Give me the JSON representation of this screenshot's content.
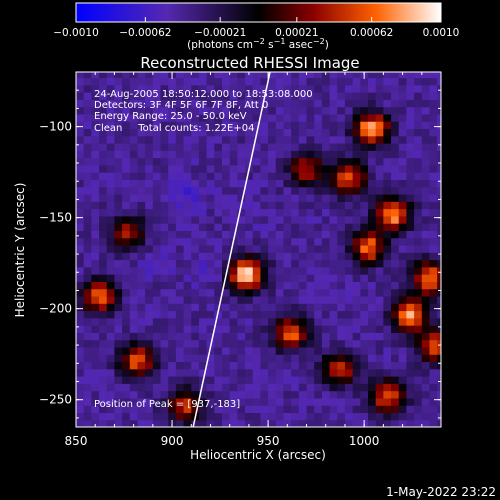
{
  "chart_data": {
    "type": "heatmap",
    "title": "Reconstructed RHESSI Image",
    "xlabel": "Heliocentric X (arcsec)",
    "ylabel": "Heliocentric Y (arcsec)",
    "xlim": [
      850,
      1040
    ],
    "ylim": [
      -265,
      -70
    ],
    "x_ticks": [
      850,
      900,
      950,
      1000
    ],
    "y_ticks": [
      -100,
      -150,
      -200,
      -250
    ],
    "grid": false,
    "colorbar": {
      "position": "top",
      "range": [
        -0.001,
        0.001
      ],
      "tick_labels": [
        "−0.0010",
        "−0.00062",
        "−0.00021",
        "0.00021",
        "0.00062",
        "0.0010"
      ],
      "tick_values": [
        -0.001,
        -0.00062,
        -0.00021,
        0.00021,
        0.00062,
        0.001
      ],
      "units": {
        "base": "(photons cm",
        "e1": "−2",
        "s": " s",
        "e2": "−1",
        "a": " asec",
        "e3": "−2",
        "end": ")"
      }
    },
    "annotations": [
      "24-Aug-2005 18:50:12.000 to 18:53:08.000",
      "Detectors: 3F 4F 5F 6F 7F 8F, Att 0",
      "Energy Range: 25.0 - 50.0 keV",
      "Clean     Total counts: 1.22E+04"
    ],
    "peak_label": "Position of Peak = [937,-183]",
    "peak": [
      937,
      -183
    ],
    "limb_line": [
      [
        911,
        -265
      ],
      [
        951,
        -70
      ]
    ],
    "sources": [
      {
        "x": 937,
        "y": -183,
        "value": 0.00098
      },
      {
        "x": 1002,
        "y": -103,
        "value": 0.00085
      },
      {
        "x": 990,
        "y": -130,
        "value": 0.0006
      },
      {
        "x": 1013,
        "y": -150,
        "value": 0.00075
      },
      {
        "x": 1000,
        "y": -168,
        "value": 0.00065
      },
      {
        "x": 1032,
        "y": -185,
        "value": 0.0007
      },
      {
        "x": 1022,
        "y": -205,
        "value": 0.0008
      },
      {
        "x": 1035,
        "y": -222,
        "value": 0.0006
      },
      {
        "x": 960,
        "y": -215,
        "value": 0.0006
      },
      {
        "x": 985,
        "y": -235,
        "value": 0.0005
      },
      {
        "x": 1010,
        "y": -250,
        "value": 0.0006
      },
      {
        "x": 860,
        "y": -195,
        "value": 0.00065
      },
      {
        "x": 880,
        "y": -230,
        "value": 0.0006
      },
      {
        "x": 905,
        "y": -255,
        "value": 0.0005
      },
      {
        "x": 875,
        "y": -160,
        "value": 0.0004
      },
      {
        "x": 968,
        "y": -125,
        "value": 0.0004
      },
      {
        "x": 905,
        "y": -140,
        "value": -0.00062
      },
      {
        "x": 888,
        "y": -175,
        "value": -0.0005
      },
      {
        "x": 915,
        "y": -180,
        "value": -0.00055
      },
      {
        "x": 930,
        "y": -120,
        "value": -0.0004
      },
      {
        "x": 945,
        "y": -150,
        "value": -0.00045
      }
    ]
  },
  "footer": {
    "timestamp": "1-May-2022 23:22"
  }
}
